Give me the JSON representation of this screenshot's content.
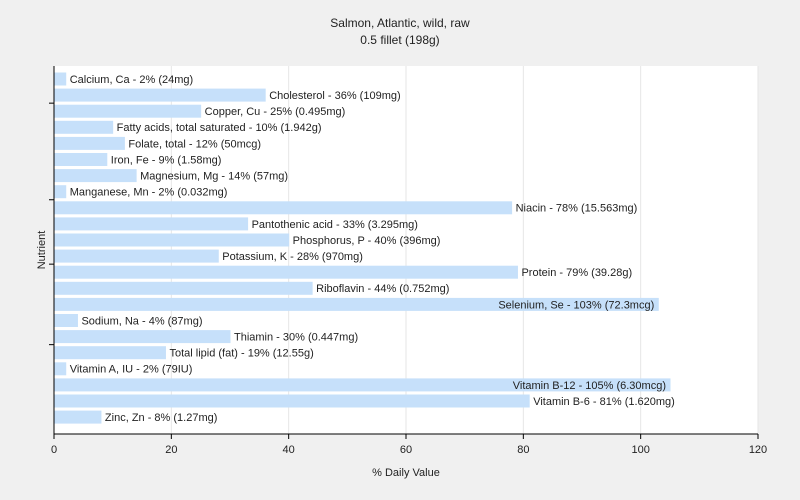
{
  "chart_data": {
    "type": "bar",
    "orientation": "horizontal",
    "title": "Salmon, Atlantic, wild, raw",
    "subtitle": "0.5 fillet (198g)",
    "xlabel": "% Daily Value",
    "ylabel": "Nutrient",
    "xlim": [
      0,
      120
    ],
    "xticks": [
      0,
      20,
      40,
      60,
      80,
      100,
      120
    ],
    "grid": true,
    "bar_color": "#c6e0fa",
    "categories": [
      "Calcium, Ca",
      "Cholesterol",
      "Copper, Cu",
      "Fatty acids, total saturated",
      "Folate, total",
      "Iron, Fe",
      "Magnesium, Mg",
      "Manganese, Mn",
      "Niacin",
      "Pantothenic acid",
      "Phosphorus, P",
      "Potassium, K",
      "Protein",
      "Riboflavin",
      "Selenium, Se",
      "Sodium, Na",
      "Thiamin",
      "Total lipid (fat)",
      "Vitamin A, IU",
      "Vitamin B-12",
      "Vitamin B-6",
      "Zinc, Zn"
    ],
    "values": [
      2,
      36,
      25,
      10,
      12,
      9,
      14,
      2,
      78,
      33,
      40,
      28,
      79,
      44,
      103,
      4,
      30,
      19,
      2,
      105,
      81,
      8
    ],
    "labels": [
      "Calcium, Ca - 2% (24mg)",
      "Cholesterol - 36% (109mg)",
      "Copper, Cu - 25% (0.495mg)",
      "Fatty acids, total saturated - 10% (1.942g)",
      "Folate, total - 12% (50mcg)",
      "Iron, Fe - 9% (1.58mg)",
      "Magnesium, Mg - 14% (57mg)",
      "Manganese, Mn - 2% (0.032mg)",
      "Niacin - 78% (15.563mg)",
      "Pantothenic acid - 33% (3.295mg)",
      "Phosphorus, P - 40% (396mg)",
      "Potassium, K - 28% (970mg)",
      "Protein - 79% (39.28g)",
      "Riboflavin - 44% (0.752mg)",
      "Selenium, Se - 103% (72.3mcg)",
      "Sodium, Na - 4% (87mg)",
      "Thiamin - 30% (0.447mg)",
      "Total lipid (fat) - 19% (12.55g)",
      "Vitamin A, IU - 2% (79IU)",
      "Vitamin B-12 - 105% (6.30mcg)",
      "Vitamin B-6 - 81% (1.620mg)",
      "Zinc, Zn - 8% (1.27mg)"
    ]
  }
}
